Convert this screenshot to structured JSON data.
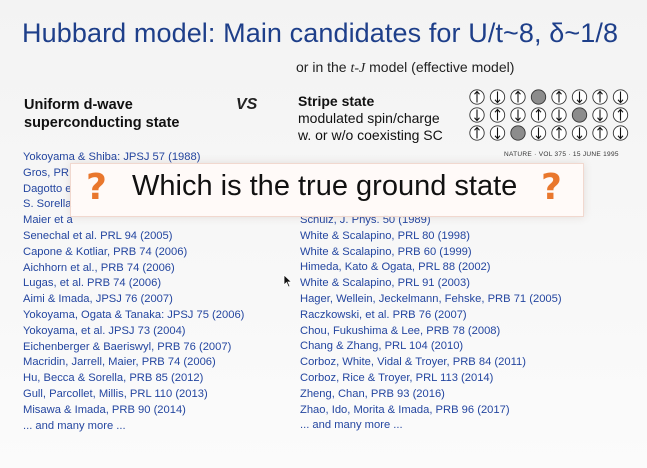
{
  "slide": {
    "title": "Hubbard model: Main candidates for U/t~8, δ~1/8",
    "subtitle_prefix": "or in the ",
    "subtitle_model": "t-J",
    "subtitle_suffix": " model (effective model)",
    "left_heading_line1": "Uniform d-wave",
    "left_heading_line2": "superconducting state",
    "vs": "VS",
    "right_heading_line1": "Stripe state",
    "right_heading_line2": "modulated spin/charge",
    "right_heading_line3": "w. or w/o coexisting SC",
    "nature_caption": "NATURE · VOL 375 · 15 JUNE 1995",
    "overlay_text": "Which is the true ground state",
    "question_mark": "?",
    "left_refs": [
      "Yokoyama & Shiba: JPSJ 57 (1988)",
      "Gros, PR",
      "Dagotto e",
      "S. Sorella",
      "Maier et a",
      "Senechal et al. PRL 94 (2005)",
      "Capone & Kotliar, PRB 74 (2006)",
      "Aichhorn et al., PRB 74 (2006)",
      "Lugas, et al. PRB 74 (2006)",
      "Aimi & Imada, JPSJ 76 (2007)",
      "Yokoyama, Ogata & Tanaka: JPSJ 75 (2006)",
      "Yokoyama, et al. JPSJ 73 (2004)",
      "Eichenberger & Baeriswyl, PRB 76 (2007)",
      "Macridin, Jarrell, Maier, PRB 74 (2006)",
      "Hu, Becca & Sorella, PRB 85 (2012)",
      "Gull, Parcollet, Millis, PRL 110 (2013)",
      "Misawa & Imada, PRB 90 (2014)",
      "... and many more ..."
    ],
    "right_refs": [
      "Schulz, J. Phys. 50 (1989)",
      "White & Scalapino, PRL 80 (1998)",
      "White & Scalapino, PRB 60 (1999)",
      "Himeda, Kato & Ogata, PRL 88 (2002)",
      "White & Scalapino, PRL 91 (2003)",
      "Hager, Wellein, Jeckelmann, Fehske, PRB 71 (2005)",
      "Raczkowski, et al. PRB 76 (2007)",
      "Chou, Fukushima & Lee, PRB 78 (2008)",
      "Chang & Zhang, PRL 104 (2010)",
      "Corboz, White, Vidal & Troyer, PRB 84 (2011)",
      "Corboz, Rice & Troyer, PRL 113 (2014)",
      "Zheng, Chan, PRB 93 (2016)",
      "Zhao, Ido, Morita & Imada, PRB 96 (2017)",
      "... and many more ..."
    ],
    "colors": {
      "title": "#1e3f8a",
      "refs": "#2446a0",
      "question_mark": "#e9772d",
      "hole_site": "#8c8c8c"
    }
  }
}
